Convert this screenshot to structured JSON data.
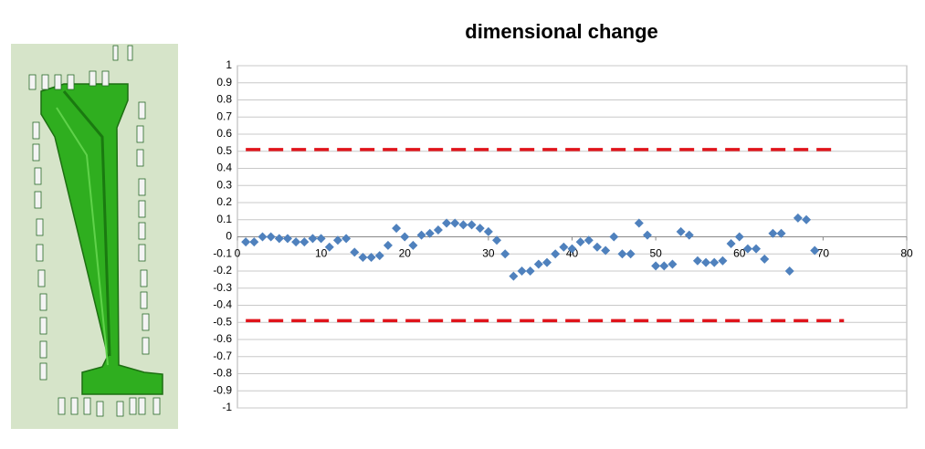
{
  "chart_data": {
    "type": "scatter",
    "title": "dimensional change",
    "xlim": [
      0,
      80
    ],
    "xticks": [
      0,
      10,
      20,
      30,
      40,
      50,
      60,
      70,
      80
    ],
    "ylim": [
      -1,
      1
    ],
    "yticks": [
      1,
      0.9,
      0.8,
      0.7,
      0.6,
      0.5,
      0.4,
      0.3,
      0.2,
      0.1,
      0,
      -0.1,
      -0.2,
      -0.3,
      -0.4,
      -0.5,
      -0.6,
      -0.7,
      -0.8,
      -0.9,
      -1
    ],
    "grid": true,
    "series": [
      {
        "kind": "marker",
        "color": "#4f81bd",
        "x": [
          1,
          2,
          3,
          4,
          5,
          6,
          7,
          8,
          9,
          10,
          11,
          12,
          13,
          14,
          15,
          16,
          17,
          18,
          19,
          20,
          21,
          22,
          23,
          24,
          25,
          26,
          27,
          28,
          29,
          30,
          31,
          32,
          33,
          34,
          35,
          36,
          37,
          38,
          39,
          40,
          41,
          42,
          43,
          44,
          45,
          46,
          47,
          48,
          49,
          50,
          51,
          52,
          53,
          54,
          55,
          56,
          57,
          58,
          59,
          60,
          61,
          62,
          63,
          64,
          65,
          66,
          67,
          68,
          69
        ],
        "values": [
          -0.03,
          -0.03,
          0,
          0,
          -0.01,
          -0.01,
          -0.03,
          -0.03,
          -0.01,
          -0.01,
          -0.06,
          -0.02,
          -0.01,
          -0.09,
          -0.12,
          -0.12,
          -0.11,
          -0.05,
          0.05,
          0,
          -0.05,
          0.01,
          0.02,
          0.04,
          0.08,
          0.08,
          0.07,
          0.07,
          0.05,
          0.03,
          -0.02,
          -0.1,
          -0.23,
          -0.2,
          -0.2,
          -0.16,
          -0.15,
          -0.1,
          -0.06,
          -0.07,
          -0.03,
          -0.02,
          -0.06,
          -0.08,
          0,
          -0.1,
          -0.1,
          0.08,
          0.01,
          -0.17,
          -0.17,
          -0.16,
          0.03,
          0.01,
          -0.14,
          -0.15,
          -0.15,
          -0.14,
          -0.04,
          0,
          -0.07,
          -0.07,
          -0.13,
          0.02,
          0.02,
          -0.2,
          0.11,
          0.1,
          -0.08
        ]
      },
      {
        "kind": "dashed-line",
        "color": "#e0141b",
        "x": [
          1,
          71
        ],
        "values": [
          0.51,
          0.51
        ]
      },
      {
        "kind": "dashed-line",
        "color": "#e0141b",
        "x": [
          1,
          72.5
        ],
        "values": [
          -0.49,
          -0.49
        ]
      }
    ]
  }
}
